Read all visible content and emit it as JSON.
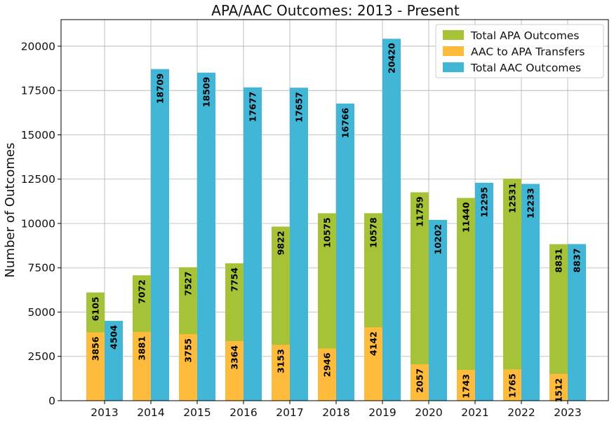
{
  "chart_data": {
    "type": "bar",
    "title": "APA/AAC Outcomes: 2013 - Present",
    "xlabel": "",
    "ylabel": "Number of Outcomes",
    "categories": [
      "2013",
      "2014",
      "2015",
      "2016",
      "2017",
      "2018",
      "2019",
      "2020",
      "2021",
      "2022",
      "2023"
    ],
    "ylim": [
      0,
      21500
    ],
    "yticks": [
      0,
      2500,
      5000,
      7500,
      10000,
      12500,
      15000,
      17500,
      20000
    ],
    "grid": true,
    "legend_position": "top-right",
    "series": [
      {
        "name": "Total APA Outcomes",
        "color": "#a6c337",
        "values": [
          6105,
          7072,
          7527,
          7754,
          9822,
          10575,
          10578,
          11759,
          11440,
          12531,
          8831
        ]
      },
      {
        "name": "AAC to APA Transfers",
        "color": "#ffbb3b",
        "values": [
          3856,
          3881,
          3755,
          3364,
          3153,
          2946,
          4142,
          2057,
          1743,
          1765,
          1512
        ]
      },
      {
        "name": "Total AAC Outcomes",
        "color": "#41b6d6",
        "values": [
          4504,
          18709,
          18509,
          17677,
          17657,
          16766,
          20420,
          10202,
          12295,
          12233,
          8837
        ]
      }
    ]
  }
}
